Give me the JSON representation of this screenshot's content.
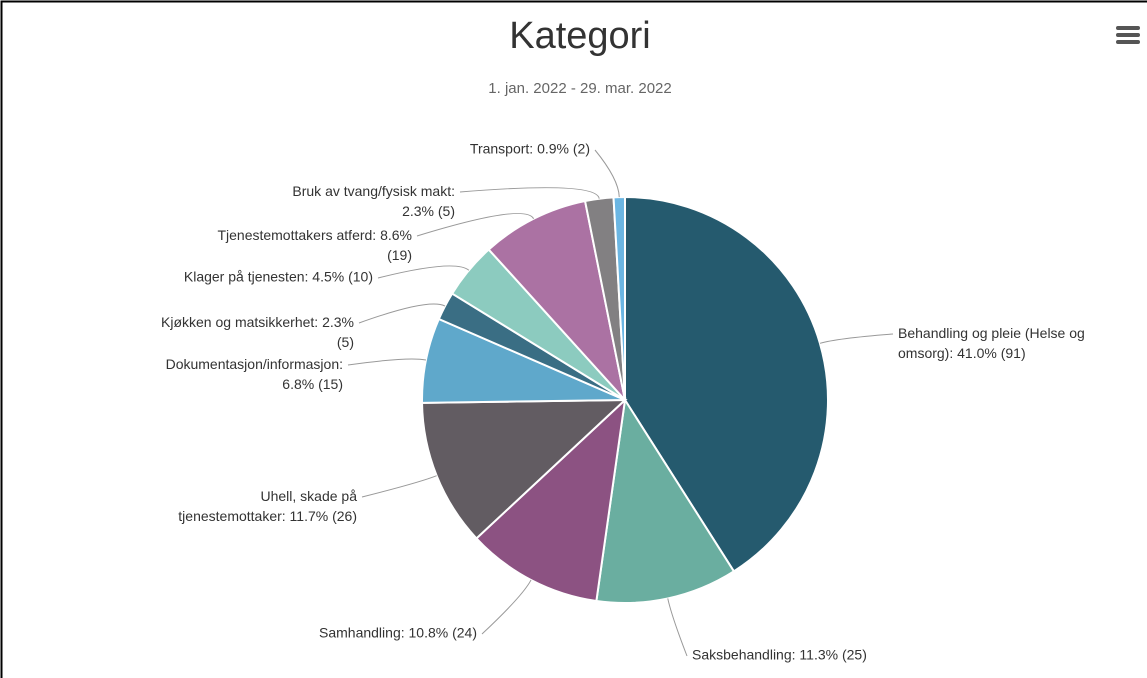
{
  "chart_data": {
    "type": "pie",
    "title": "Kategori",
    "subtitle": "1. jan. 2022 - 29. mar. 2022",
    "values": [
      91,
      25,
      24,
      26,
      15,
      5,
      10,
      19,
      5,
      2
    ],
    "value_labels": [
      "Behandling og pleie (Helse og omsorg): 41.0% (91)",
      "Saksbehandling: 11.3% (25)",
      "Samhandling: 10.8% (24)",
      "Uhell, skade på tjenestemottaker: 11.7% (26)",
      "Dokumentasjon/informasjon: 6.8% (15)",
      "Kjøkken og matsikkerhet: 2.3% (5)",
      "Klager på tjenesten: 4.5% (10)",
      "Tjenestemottakers atferd: 8.6% (19)",
      "Bruk av tvang/fysisk makt: 2.3% (5)",
      "Transport: 0.9% (2)"
    ],
    "colors": [
      "#255a6e",
      "#6aaea0",
      "#8c5282",
      "#625c62",
      "#5fa8cb",
      "#3a6e84",
      "#8ccbbf",
      "#ab72a3",
      "#828082",
      "#6bb6e3"
    ]
  }
}
